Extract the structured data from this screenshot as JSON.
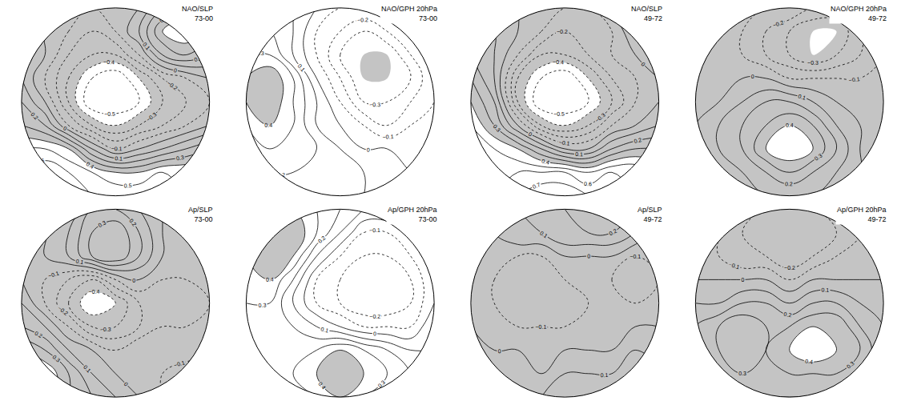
{
  "chart_data": [
    {
      "type": "contour",
      "title": "NAO/SLP",
      "subtitle": "73-00",
      "tick_labels": false,
      "xlim": [
        -1.05,
        1.05
      ],
      "ylim": [
        -1.05,
        1.05
      ],
      "contour_levels": {
        "start": -0.9,
        "end": 0.9,
        "size": 0.1
      },
      "shaded_beyond": 0.4,
      "x": [
        -1,
        -0.75,
        -0.5,
        -0.25,
        0,
        0.25,
        0.5,
        0.75,
        1
      ],
      "y": [
        1,
        0.75,
        0.5,
        0.25,
        0,
        -0.25,
        -0.5,
        -0.75,
        -1
      ],
      "z": [
        [
          0.1,
          0.1,
          0.0,
          -0.1,
          -0.1,
          0.0,
          0.2,
          0.3,
          0.2
        ],
        [
          0.1,
          0.0,
          -0.1,
          -0.2,
          -0.1,
          0.1,
          0.4,
          0.5,
          0.3
        ],
        [
          0.1,
          0.0,
          -0.2,
          -0.3,
          -0.3,
          -0.1,
          0.2,
          0.3,
          0.2
        ],
        [
          0.1,
          -0.1,
          -0.3,
          -0.5,
          -0.6,
          -0.4,
          -0.2,
          -0.1,
          0.0
        ],
        [
          0.2,
          0.0,
          -0.3,
          -0.6,
          -0.6,
          -0.5,
          -0.3,
          -0.2,
          -0.1
        ],
        [
          0.3,
          0.2,
          -0.1,
          -0.3,
          -0.4,
          -0.3,
          -0.2,
          -0.1,
          0.0
        ],
        [
          0.5,
          0.5,
          0.4,
          0.1,
          -0.1,
          0.0,
          0.1,
          0.2,
          0.3
        ],
        [
          0.6,
          0.7,
          0.6,
          0.5,
          0.4,
          0.4,
          0.5,
          0.5,
          0.5
        ],
        [
          0.6,
          0.7,
          0.7,
          0.6,
          0.6,
          0.6,
          0.6,
          0.5,
          0.5
        ]
      ]
    },
    {
      "type": "contour",
      "title": "NAO/GPH 20hPa",
      "subtitle": "73-00",
      "tick_labels": false,
      "xlim": [
        -1.05,
        1.05
      ],
      "ylim": [
        -1.05,
        1.05
      ],
      "contour_levels": {
        "start": -0.9,
        "end": 0.9,
        "size": 0.1
      },
      "shaded_beyond": 0.4,
      "x": [
        -1,
        -0.75,
        -0.5,
        -0.25,
        0,
        0.25,
        0.5,
        0.75,
        1
      ],
      "y": [
        1,
        0.75,
        0.5,
        0.25,
        0,
        -0.25,
        -0.5,
        -0.75,
        -1
      ],
      "z": [
        [
          0.2,
          0.2,
          0.1,
          0.0,
          -0.1,
          -0.1,
          -0.1,
          0.0,
          0.0
        ],
        [
          0.2,
          0.2,
          0.1,
          -0.1,
          -0.2,
          -0.3,
          -0.2,
          -0.1,
          0.0
        ],
        [
          0.3,
          0.3,
          0.1,
          -0.1,
          -0.3,
          -0.4,
          -0.4,
          -0.2,
          -0.1
        ],
        [
          0.4,
          0.5,
          0.3,
          0.0,
          -0.2,
          -0.4,
          -0.4,
          -0.3,
          -0.1
        ],
        [
          0.4,
          0.5,
          0.3,
          0.1,
          -0.1,
          -0.3,
          -0.3,
          -0.2,
          -0.1
        ],
        [
          0.3,
          0.4,
          0.3,
          0.1,
          0.0,
          -0.1,
          -0.2,
          -0.1,
          0.0
        ],
        [
          0.2,
          0.3,
          0.3,
          0.2,
          0.1,
          0.0,
          0.0,
          0.0,
          0.0
        ],
        [
          0.2,
          0.2,
          0.2,
          0.2,
          0.2,
          0.1,
          0.1,
          0.0,
          0.0
        ],
        [
          0.1,
          0.2,
          0.2,
          0.2,
          0.2,
          0.1,
          0.1,
          0.1,
          0.0
        ]
      ]
    },
    {
      "type": "contour",
      "title": "NAO/SLP",
      "subtitle": "49-72",
      "tick_labels": false,
      "xlim": [
        -1.05,
        1.05
      ],
      "ylim": [
        -1.05,
        1.05
      ],
      "contour_levels": {
        "start": -0.9,
        "end": 0.9,
        "size": 0.1
      },
      "shaded_beyond": 0.4,
      "x": [
        -1,
        -0.75,
        -0.5,
        -0.25,
        0,
        0.25,
        0.5,
        0.75,
        1
      ],
      "y": [
        1,
        0.75,
        0.5,
        0.25,
        0,
        -0.25,
        -0.5,
        -0.75,
        -1
      ],
      "z": [
        [
          0.1,
          0.1,
          0.0,
          -0.1,
          -0.1,
          -0.1,
          0.0,
          0.1,
          0.2
        ],
        [
          0.2,
          0.1,
          0.0,
          -0.1,
          -0.2,
          -0.2,
          -0.1,
          0.1,
          0.2
        ],
        [
          0.2,
          0.1,
          -0.1,
          -0.3,
          -0.3,
          -0.2,
          -0.1,
          0.0,
          0.1
        ],
        [
          0.3,
          0.1,
          -0.3,
          -0.5,
          -0.6,
          -0.4,
          -0.2,
          -0.1,
          0.0
        ],
        [
          0.4,
          0.2,
          -0.3,
          -0.6,
          -0.6,
          -0.5,
          -0.3,
          -0.1,
          0.0
        ],
        [
          0.5,
          0.3,
          0.0,
          -0.3,
          -0.4,
          -0.3,
          -0.1,
          0.0,
          0.1
        ],
        [
          0.6,
          0.5,
          0.4,
          0.2,
          0.0,
          0.0,
          0.2,
          0.3,
          0.3
        ],
        [
          0.6,
          0.6,
          0.6,
          0.6,
          0.6,
          0.5,
          0.6,
          0.6,
          0.5
        ],
        [
          0.5,
          0.6,
          0.7,
          0.8,
          0.8,
          0.7,
          0.7,
          0.6,
          0.5
        ]
      ]
    },
    {
      "type": "contour",
      "title": "NAO/GPH 20hPa",
      "subtitle": "49-72",
      "tick_labels": false,
      "xlim": [
        -1.05,
        1.05
      ],
      "ylim": [
        -1.05,
        1.05
      ],
      "contour_levels": {
        "start": -0.9,
        "end": 0.9,
        "size": 0.1
      },
      "shaded_beyond": 0.4,
      "x": [
        -1,
        -0.75,
        -0.5,
        -0.25,
        0,
        0.25,
        0.5,
        0.75,
        1
      ],
      "y": [
        1,
        0.75,
        0.5,
        0.25,
        0,
        -0.25,
        -0.5,
        -0.75,
        -1
      ],
      "z": [
        [
          0.0,
          0.0,
          0.0,
          -0.1,
          -0.1,
          -0.2,
          -0.2,
          -0.1,
          -0.1
        ],
        [
          0.0,
          0.0,
          -0.1,
          -0.2,
          -0.3,
          -0.4,
          -0.4,
          -0.2,
          -0.1
        ],
        [
          0.0,
          0.0,
          -0.1,
          -0.2,
          -0.3,
          -0.4,
          -0.3,
          -0.2,
          -0.1
        ],
        [
          0.0,
          0.0,
          0.0,
          0.0,
          -0.1,
          -0.1,
          -0.1,
          -0.1,
          -0.1
        ],
        [
          0.0,
          0.0,
          0.1,
          0.2,
          0.2,
          0.1,
          0.0,
          -0.1,
          -0.1
        ],
        [
          0.0,
          0.1,
          0.2,
          0.3,
          0.4,
          0.3,
          0.1,
          0.0,
          -0.1
        ],
        [
          0.0,
          0.1,
          0.2,
          0.4,
          0.5,
          0.4,
          0.2,
          0.0,
          -0.1
        ],
        [
          0.0,
          0.1,
          0.1,
          0.2,
          0.3,
          0.2,
          0.1,
          0.0,
          -0.1
        ],
        [
          0.0,
          0.0,
          0.1,
          0.1,
          0.1,
          0.1,
          0.0,
          0.0,
          -0.1
        ]
      ]
    },
    {
      "type": "contour",
      "title": "Ap/SLP",
      "subtitle": "73-00",
      "tick_labels": false,
      "xlim": [
        -1.05,
        1.05
      ],
      "ylim": [
        -1.05,
        1.05
      ],
      "contour_levels": {
        "start": -0.9,
        "end": 0.9,
        "size": 0.1
      },
      "shaded_beyond": 0.4,
      "x": [
        -1,
        -0.75,
        -0.5,
        -0.25,
        0,
        0.25,
        0.5,
        0.75,
        1
      ],
      "y": [
        1,
        0.75,
        0.5,
        0.25,
        0,
        -0.25,
        -0.5,
        -0.75,
        -1
      ],
      "z": [
        [
          0.1,
          0.1,
          0.0,
          0.2,
          0.2,
          0.1,
          0.0,
          -0.1,
          0.0
        ],
        [
          0.0,
          0.0,
          0.1,
          0.3,
          0.4,
          0.2,
          0.0,
          -0.1,
          -0.1
        ],
        [
          0.0,
          0.0,
          0.1,
          0.3,
          0.4,
          0.2,
          0.0,
          -0.1,
          -0.1
        ],
        [
          0.0,
          -0.1,
          -0.2,
          -0.3,
          -0.1,
          0.0,
          -0.1,
          -0.1,
          -0.1
        ],
        [
          0.1,
          -0.1,
          -0.3,
          -0.5,
          -0.4,
          -0.2,
          -0.2,
          -0.2,
          -0.1
        ],
        [
          0.2,
          0.1,
          -0.1,
          -0.3,
          -0.3,
          -0.2,
          -0.1,
          -0.1,
          0.0
        ],
        [
          0.4,
          0.3,
          0.1,
          0.0,
          -0.1,
          0.0,
          0.0,
          0.0,
          0.0
        ],
        [
          0.5,
          0.5,
          0.3,
          0.1,
          0.0,
          0.0,
          -0.1,
          -0.2,
          -0.3
        ],
        [
          0.5,
          0.5,
          0.3,
          0.2,
          0.1,
          0.0,
          -0.1,
          -0.2,
          -0.3
        ]
      ]
    },
    {
      "type": "contour",
      "title": "Ap/GPH 20hPa",
      "subtitle": "73-00",
      "tick_labels": false,
      "xlim": [
        -1.05,
        1.05
      ],
      "ylim": [
        -1.05,
        1.05
      ],
      "contour_levels": {
        "start": -0.9,
        "end": 0.9,
        "size": 0.1
      },
      "shaded_beyond": 0.4,
      "x": [
        -1,
        -0.75,
        -0.5,
        -0.25,
        0,
        0.25,
        0.5,
        0.75,
        1
      ],
      "y": [
        1,
        0.75,
        0.5,
        0.25,
        0,
        -0.25,
        -0.5,
        -0.75,
        -1
      ],
      "z": [
        [
          0.3,
          0.4,
          0.4,
          0.3,
          0.2,
          0.1,
          0.1,
          0.1,
          0.2
        ],
        [
          0.4,
          0.5,
          0.5,
          0.3,
          0.1,
          -0.1,
          -0.1,
          0.0,
          0.1
        ],
        [
          0.4,
          0.5,
          0.4,
          0.1,
          -0.1,
          -0.2,
          -0.2,
          -0.1,
          0.0
        ],
        [
          0.4,
          0.4,
          0.2,
          -0.1,
          -0.2,
          -0.3,
          -0.3,
          -0.2,
          0.0
        ],
        [
          0.3,
          0.3,
          0.1,
          -0.1,
          -0.2,
          -0.3,
          -0.3,
          -0.2,
          0.0
        ],
        [
          0.3,
          0.3,
          0.2,
          0.1,
          0.0,
          -0.1,
          -0.1,
          -0.1,
          0.1
        ],
        [
          0.3,
          0.3,
          0.3,
          0.3,
          0.4,
          0.3,
          0.2,
          0.1,
          0.1
        ],
        [
          0.2,
          0.3,
          0.3,
          0.4,
          0.5,
          0.4,
          0.3,
          0.2,
          0.2
        ],
        [
          0.2,
          0.2,
          0.3,
          0.3,
          0.4,
          0.3,
          0.3,
          0.2,
          0.2
        ]
      ]
    },
    {
      "type": "contour",
      "title": "Ap/SLP",
      "subtitle": "49-72",
      "tick_labels": false,
      "xlim": [
        -1.05,
        1.05
      ],
      "ylim": [
        -1.05,
        1.05
      ],
      "contour_levels": {
        "start": -0.9,
        "end": 0.9,
        "size": 0.1
      },
      "shaded_beyond": 0.4,
      "x": [
        -1,
        -0.75,
        -0.5,
        -0.25,
        0,
        0.25,
        0.5,
        0.75,
        1
      ],
      "y": [
        1,
        0.75,
        0.5,
        0.25,
        0,
        -0.25,
        -0.5,
        -0.75,
        -1
      ],
      "z": [
        [
          0.1,
          0.0,
          0.1,
          0.2,
          0.2,
          0.3,
          0.3,
          0.2,
          0.1
        ],
        [
          0.0,
          0.0,
          0.1,
          0.1,
          0.2,
          0.2,
          0.2,
          0.1,
          0.0
        ],
        [
          0.0,
          -0.1,
          -0.1,
          -0.1,
          0.0,
          0.0,
          0.0,
          -0.1,
          -0.1
        ],
        [
          0.0,
          -0.1,
          -0.2,
          -0.2,
          -0.1,
          -0.1,
          -0.1,
          -0.2,
          -0.1
        ],
        [
          0.0,
          -0.1,
          -0.2,
          -0.2,
          -0.2,
          -0.1,
          -0.1,
          -0.1,
          -0.1
        ],
        [
          0.0,
          0.0,
          -0.1,
          -0.1,
          -0.1,
          -0.1,
          0.0,
          0.0,
          0.0
        ],
        [
          0.1,
          0.0,
          0.0,
          0.0,
          0.0,
          0.0,
          0.0,
          0.1,
          0.1
        ],
        [
          0.1,
          0.1,
          0.1,
          0.0,
          0.1,
          0.1,
          0.1,
          0.2,
          0.1
        ],
        [
          0.1,
          0.1,
          0.1,
          0.1,
          0.2,
          0.2,
          0.2,
          0.1,
          0.1
        ]
      ]
    },
    {
      "type": "contour",
      "title": "Ap/GPH 20hPa",
      "subtitle": "49-72",
      "tick_labels": false,
      "xlim": [
        -1.05,
        1.05
      ],
      "ylim": [
        -1.05,
        1.05
      ],
      "contour_levels": {
        "start": -0.9,
        "end": 0.9,
        "size": 0.1
      },
      "shaded_beyond": 0.4,
      "x": [
        -1,
        -0.75,
        -0.5,
        -0.25,
        0,
        0.25,
        0.5,
        0.75,
        1
      ],
      "y": [
        1,
        0.75,
        0.5,
        0.25,
        0,
        -0.25,
        -0.5,
        -0.75,
        -1
      ],
      "z": [
        [
          0.0,
          -0.1,
          -0.2,
          -0.2,
          -0.2,
          -0.2,
          -0.1,
          0.0,
          0.0
        ],
        [
          -0.1,
          -0.1,
          -0.2,
          -0.3,
          -0.3,
          -0.3,
          -0.2,
          -0.1,
          0.0
        ],
        [
          -0.1,
          -0.1,
          -0.2,
          -0.2,
          -0.3,
          -0.2,
          -0.1,
          -0.1,
          0.0
        ],
        [
          0.0,
          0.0,
          0.0,
          0.0,
          -0.1,
          0.0,
          0.0,
          0.0,
          0.0
        ],
        [
          0.1,
          0.1,
          0.2,
          0.2,
          0.1,
          0.2,
          0.2,
          0.1,
          0.1
        ],
        [
          0.2,
          0.3,
          0.4,
          0.3,
          0.3,
          0.4,
          0.4,
          0.2,
          0.1
        ],
        [
          0.2,
          0.3,
          0.4,
          0.3,
          0.4,
          0.5,
          0.4,
          0.3,
          0.1
        ],
        [
          0.1,
          0.2,
          0.3,
          0.3,
          0.3,
          0.3,
          0.3,
          0.2,
          0.1
        ],
        [
          0.1,
          0.1,
          0.2,
          0.2,
          0.2,
          0.2,
          0.2,
          0.1,
          0.1
        ]
      ]
    }
  ]
}
